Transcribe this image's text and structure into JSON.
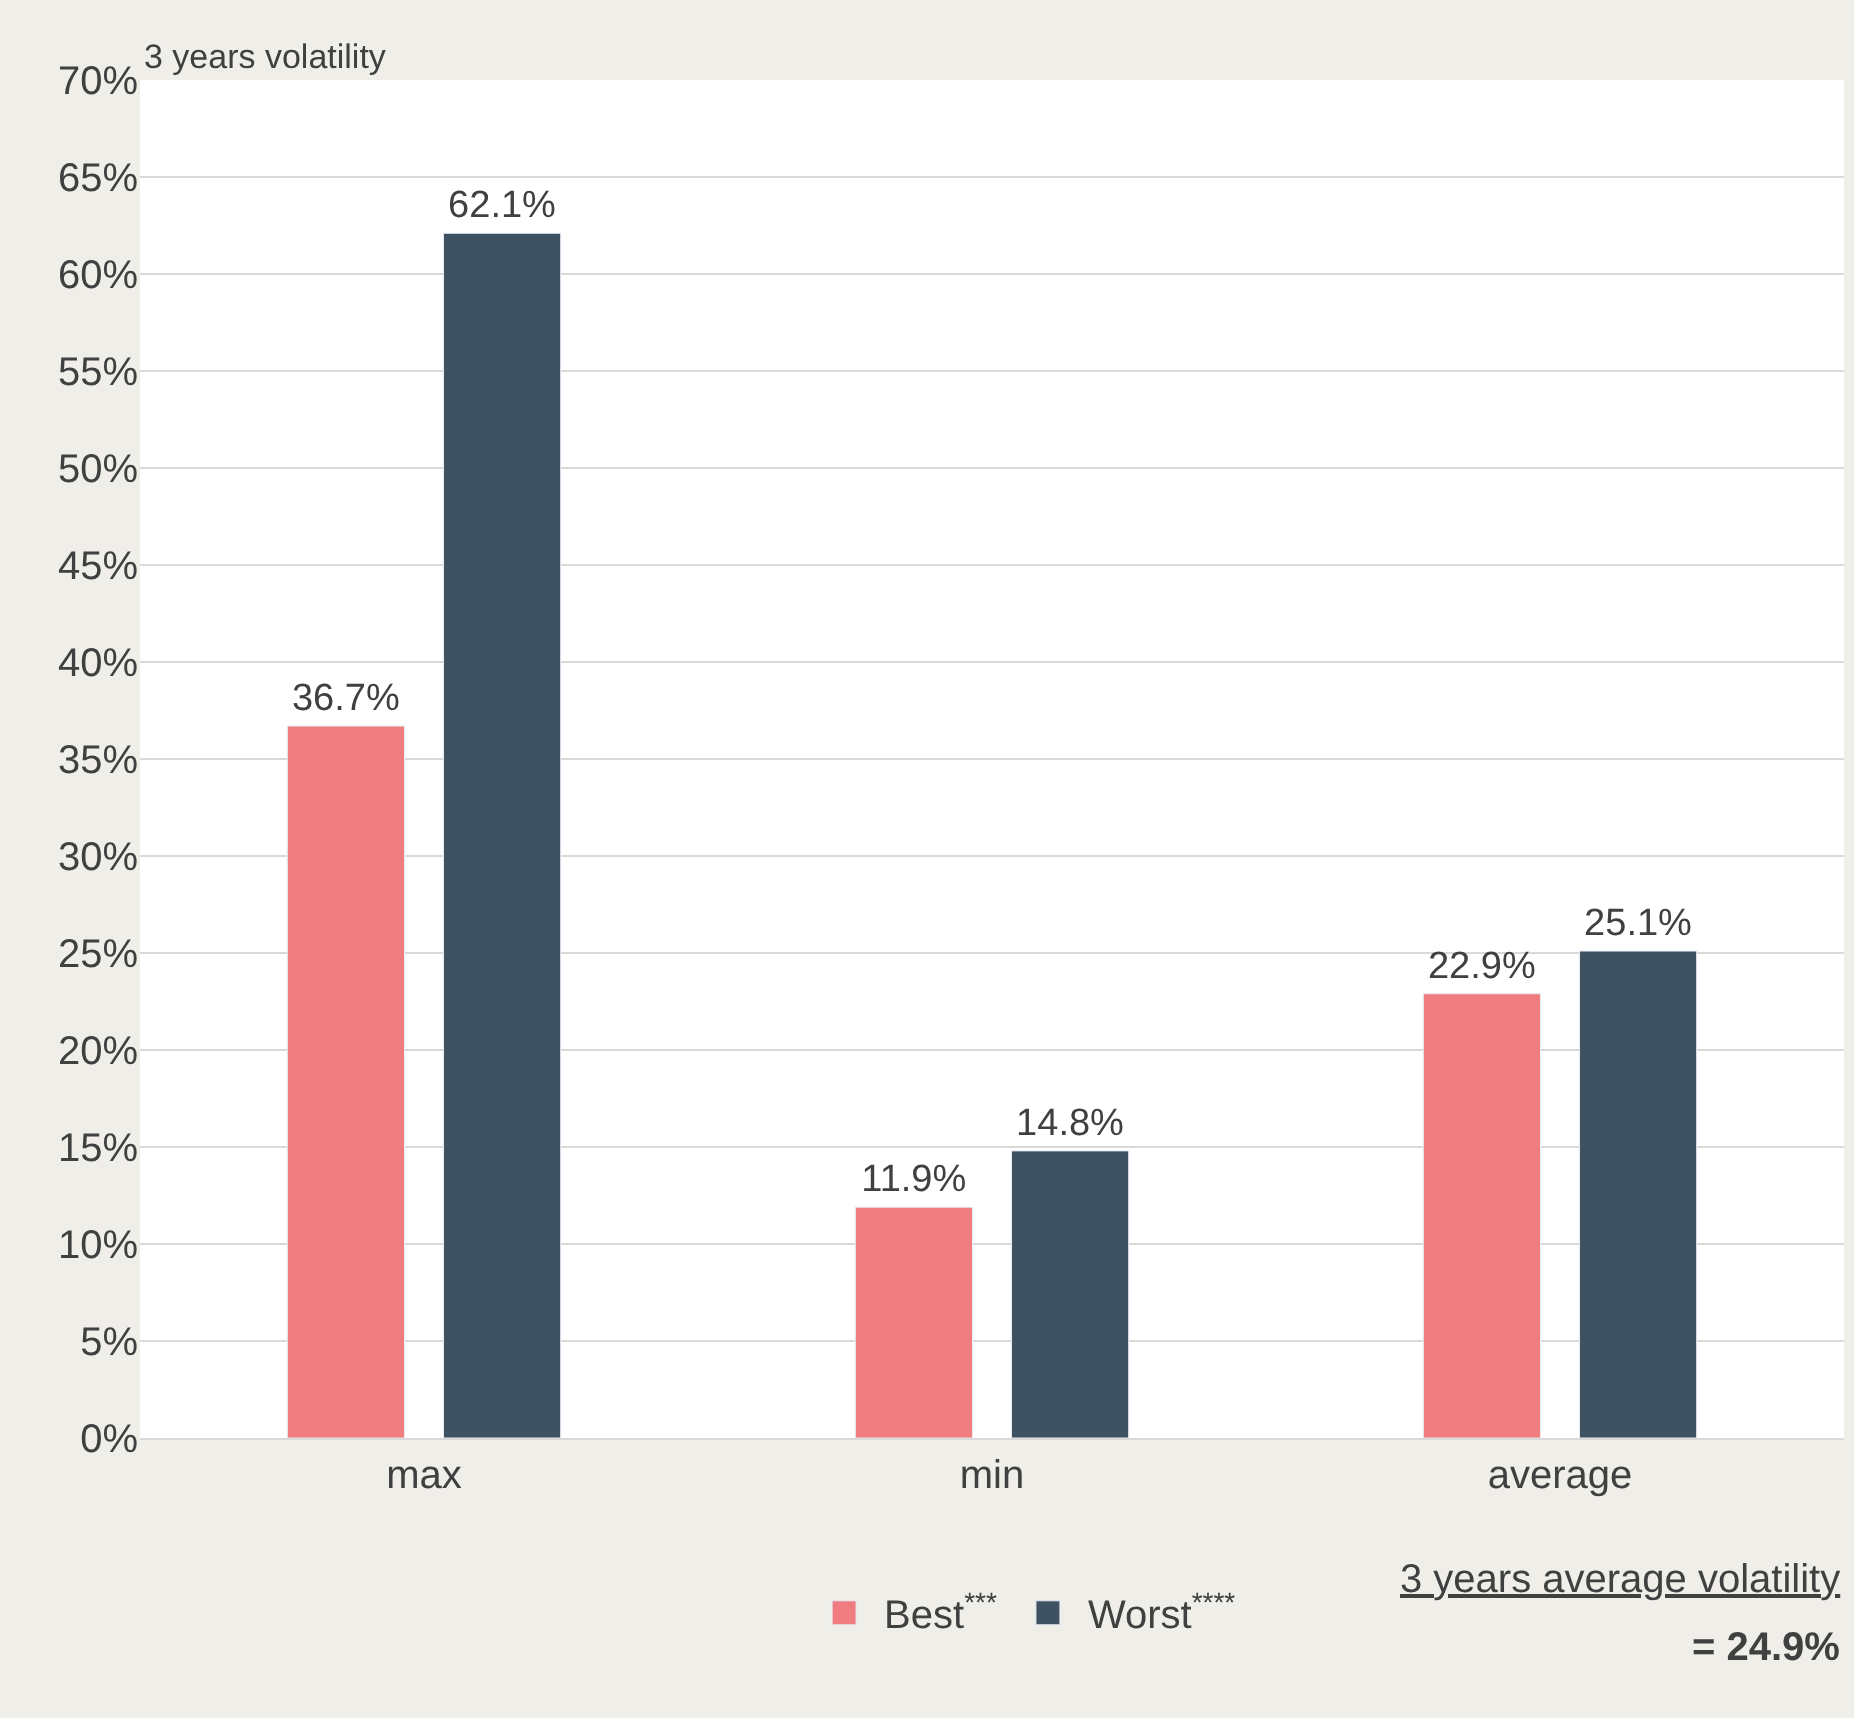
{
  "chart_data": {
    "type": "bar",
    "ylabel": "3 years volatility",
    "categories": [
      "max",
      "min",
      "average"
    ],
    "series": [
      {
        "name": "Best$^{***}$",
        "color": "#f07c80",
        "values": [
          36.7,
          11.9,
          22.9
        ]
      },
      {
        "name": "Worst$^{****}$",
        "color": "#3f5262",
        "values": [
          62.1,
          14.8,
          25.1
        ]
      }
    ],
    "ylim": [
      0,
      70
    ],
    "yticks": [
      {
        "value": 0,
        "label": "0%"
      },
      {
        "value": 5,
        "label": "5%"
      },
      {
        "value": 10,
        "label": "10%"
      },
      {
        "value": 15,
        "label": "15%"
      },
      {
        "value": 20,
        "label": "20%"
      },
      {
        "value": 25,
        "label": "25%"
      },
      {
        "value": 30,
        "label": "30%"
      },
      {
        "value": 35,
        "label": "35%"
      },
      {
        "value": 40,
        "label": "40%"
      },
      {
        "value": 45,
        "label": "45%"
      },
      {
        "value": 50,
        "label": "50%"
      },
      {
        "value": 55,
        "label": "55%"
      },
      {
        "value": 60,
        "label": "60%"
      },
      {
        "value": 65,
        "label": "65%"
      },
      {
        "value": 70,
        "label": "70%"
      }
    ],
    "value_labels": [
      [
        "36.7%",
        "11.9%",
        "22.9%"
      ],
      [
        "62.1%",
        "14.8%",
        "25.1%"
      ]
    ],
    "grid": "y",
    "legend": "bottom",
    "annotations": [
      "3 years average volatility",
      "= 24.9%"
    ]
  }
}
